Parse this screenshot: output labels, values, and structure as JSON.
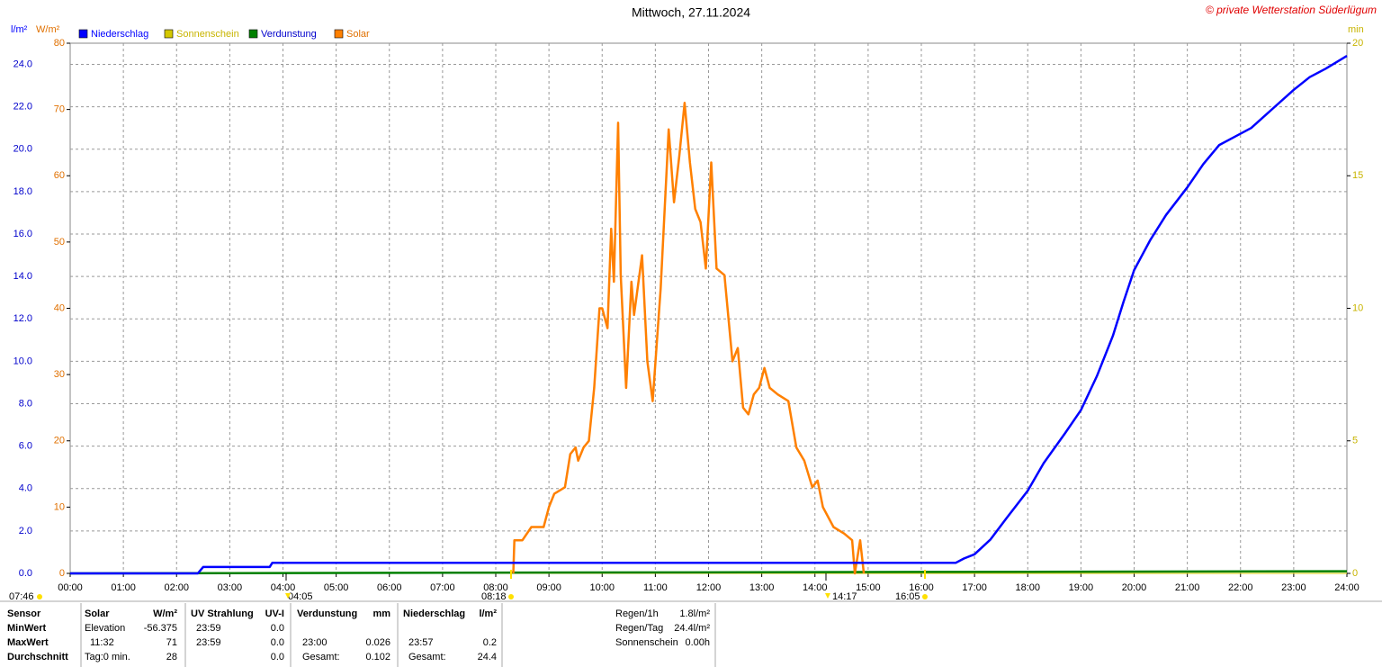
{
  "chart_data": {
    "type": "line",
    "title": "Mittwoch, 27.11.2024",
    "credit": "© private Wetterstation Süderlügum",
    "ylabel": "l/m²",
    "y2label": "W/m²",
    "y3label": "min",
    "xlim": [
      0,
      24
    ],
    "xticks": [
      {
        "value": 0,
        "label": "00:00"
      },
      {
        "value": 1,
        "label": "01:00"
      },
      {
        "value": 2,
        "label": "02:00"
      },
      {
        "value": 3,
        "label": "03:00"
      },
      {
        "value": 4,
        "label": "04:00"
      },
      {
        "value": 5,
        "label": "05:00"
      },
      {
        "value": 6,
        "label": "06:00"
      },
      {
        "value": 7,
        "label": "07:00"
      },
      {
        "value": 8,
        "label": "08:00"
      },
      {
        "value": 9,
        "label": "09:00"
      },
      {
        "value": 10,
        "label": "10:00"
      },
      {
        "value": 11,
        "label": "11:00"
      },
      {
        "value": 12,
        "label": "12:00"
      },
      {
        "value": 13,
        "label": "13:00"
      },
      {
        "value": 14,
        "label": "14:00"
      },
      {
        "value": 15,
        "label": "15:00"
      },
      {
        "value": 16,
        "label": "16:00"
      },
      {
        "value": 17,
        "label": "17:00"
      },
      {
        "value": 18,
        "label": "18:00"
      },
      {
        "value": 19,
        "label": "19:00"
      },
      {
        "value": 20,
        "label": "20:00"
      },
      {
        "value": 21,
        "label": "21:00"
      },
      {
        "value": 22,
        "label": "22:00"
      },
      {
        "value": 23,
        "label": "23:00"
      },
      {
        "value": 24,
        "label": "24:00"
      }
    ],
    "ylim": [
      0,
      25
    ],
    "yticks": [
      {
        "value": 0,
        "label": "0.0"
      },
      {
        "value": 2,
        "label": "2.0"
      },
      {
        "value": 4,
        "label": "4.0"
      },
      {
        "value": 6,
        "label": "6.0"
      },
      {
        "value": 8,
        "label": "8.0"
      },
      {
        "value": 10,
        "label": "10.0"
      },
      {
        "value": 12,
        "label": "12.0"
      },
      {
        "value": 14,
        "label": "14.0"
      },
      {
        "value": 16,
        "label": "16.0"
      },
      {
        "value": 18,
        "label": "18.0"
      },
      {
        "value": 20,
        "label": "20.0"
      },
      {
        "value": 22,
        "label": "22.0"
      },
      {
        "value": 24,
        "label": "24.0"
      }
    ],
    "y2lim": [
      0,
      80
    ],
    "y2ticks": [
      0,
      10,
      20,
      30,
      40,
      50,
      60,
      70,
      80
    ],
    "y3lim": [
      0,
      20
    ],
    "y3ticks": [
      0,
      5,
      10,
      15,
      20
    ],
    "grid": true,
    "series": [
      {
        "name": "Niederschlag",
        "color": "#0000ff",
        "axis": "y",
        "x": [
          0,
          2.4,
          2.5,
          3.75,
          3.8,
          16.65,
          16.8,
          17.0,
          17.3,
          17.6,
          18.0,
          18.3,
          18.7,
          19.0,
          19.3,
          19.6,
          19.8,
          20.0,
          20.3,
          20.6,
          21.0,
          21.3,
          21.6,
          21.9,
          22.2,
          22.6,
          23.0,
          23.3,
          23.6,
          24.0
        ],
        "values": [
          0,
          0,
          0.3,
          0.3,
          0.5,
          0.5,
          0.7,
          0.9,
          1.6,
          2.6,
          3.9,
          5.2,
          6.6,
          7.7,
          9.3,
          11.2,
          12.8,
          14.3,
          15.7,
          16.9,
          18.2,
          19.3,
          20.2,
          20.6,
          21.0,
          21.9,
          22.8,
          23.4,
          23.8,
          24.4
        ]
      },
      {
        "name": "Sonnenschein",
        "color": "#d4c800",
        "axis": "y3",
        "x": [
          0,
          24
        ],
        "values": [
          0,
          0
        ]
      },
      {
        "name": "Verdunstung",
        "color": "#008000",
        "axis": "y",
        "x": [
          0,
          24
        ],
        "values": [
          0,
          0.1
        ]
      },
      {
        "name": "Solar",
        "color": "#ff8000",
        "axis": "y2",
        "x": [
          8.33,
          8.35,
          8.5,
          8.67,
          8.9,
          9.0,
          9.1,
          9.3,
          9.4,
          9.5,
          9.55,
          9.65,
          9.75,
          9.85,
          9.95,
          10.0,
          10.1,
          10.17,
          10.22,
          10.3,
          10.35,
          10.45,
          10.55,
          10.6,
          10.75,
          10.85,
          10.95,
          11.1,
          11.25,
          11.35,
          11.45,
          11.55,
          11.65,
          11.75,
          11.85,
          11.95,
          12.05,
          12.15,
          12.3,
          12.45,
          12.55,
          12.65,
          12.75,
          12.85,
          12.95,
          13.05,
          13.15,
          13.3,
          13.5,
          13.65,
          13.8,
          13.95,
          14.05,
          14.15,
          14.35,
          14.55,
          14.7,
          14.75,
          14.85,
          14.92
        ],
        "values": [
          0,
          5,
          5,
          7,
          7,
          10,
          12,
          13,
          18,
          19,
          17,
          19,
          20,
          28,
          40,
          40,
          37,
          52,
          44,
          68,
          45,
          28,
          44,
          39,
          48,
          32,
          26,
          43,
          67,
          56,
          63,
          71,
          62,
          55,
          53,
          46,
          62,
          46,
          45,
          32,
          34,
          25,
          24,
          27,
          28,
          31,
          28,
          27,
          26,
          19,
          17,
          13,
          14,
          10,
          7,
          6,
          5,
          0,
          5,
          0
        ]
      }
    ],
    "markers": [
      "07:46",
      "04:05",
      "08:18",
      "14:17",
      "16:05"
    ]
  },
  "stats": {
    "rows": [
      [
        "Sensor",
        "Solar",
        "W/m²",
        "UV Strahlung",
        "UV-I",
        "Verdunstung",
        "mm",
        "Niederschlag",
        "l/m²"
      ],
      [
        "MinWert",
        "Elevation",
        "-56.375",
        "23:59",
        "0.0",
        null,
        null,
        null,
        null
      ],
      [
        "MaxWert",
        "11:32",
        "71",
        "23:59",
        "0.0",
        "23:00",
        "0.026",
        "23:57",
        "0.2"
      ],
      [
        "Durchschnitt",
        "Tag:0 min.",
        "28",
        null,
        "0.0",
        "Gesamt:",
        "0.102",
        "Gesamt:",
        "24.4"
      ]
    ],
    "side": [
      [
        "Regen/1h",
        "1.8l/m²"
      ],
      [
        "Regen/Tag",
        "24.4l/m²"
      ],
      [
        "Sonnenschein",
        "0.00h"
      ]
    ]
  }
}
